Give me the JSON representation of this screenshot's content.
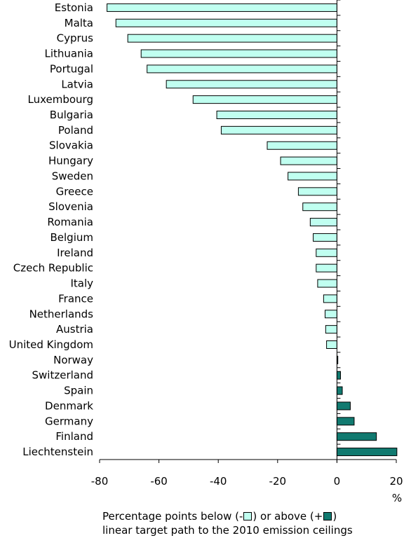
{
  "chart_data": {
    "type": "bar",
    "orientation": "horizontal",
    "categories": [
      "Estonia",
      "Malta",
      "Cyprus",
      "Lithuania",
      "Portugal",
      "Latvia",
      "Luxembourg",
      "Bulgaria",
      "Poland",
      "Slovakia",
      "Hungary",
      "Sweden",
      "Greece",
      "Slovenia",
      "Romania",
      "Belgium",
      "Ireland",
      "Czech Republic",
      "Italy",
      "France",
      "Netherlands",
      "Austria",
      "United Kingdom",
      "Norway",
      "Switzerland",
      "Spain",
      "Denmark",
      "Germany",
      "Finland",
      "Liechtenstein"
    ],
    "values": [
      -77.5,
      -74.5,
      -70.5,
      -66,
      -64,
      -57.5,
      -48.5,
      -40.5,
      -39,
      -23.5,
      -19,
      -16.5,
      -13,
      -11.5,
      -9,
      -8,
      -7,
      -7,
      -6.5,
      -4.5,
      -4,
      -3.8,
      -3.5,
      0.3,
      1.2,
      1.8,
      4.5,
      5.8,
      13.3,
      20.2
    ],
    "colors": {
      "below": "#c0fff0",
      "above": "#117a70",
      "stroke": "#000000"
    },
    "xlim": [
      -80,
      20
    ],
    "xticks": [
      -80,
      -60,
      -40,
      -20,
      0,
      20
    ],
    "xunit": "%",
    "caption": {
      "line1_before": "Percentage points below (-",
      "line1_middle": ") or above (+",
      "line1_after": ")",
      "line2": "linear target path to the 2010 emission ceilings"
    }
  }
}
